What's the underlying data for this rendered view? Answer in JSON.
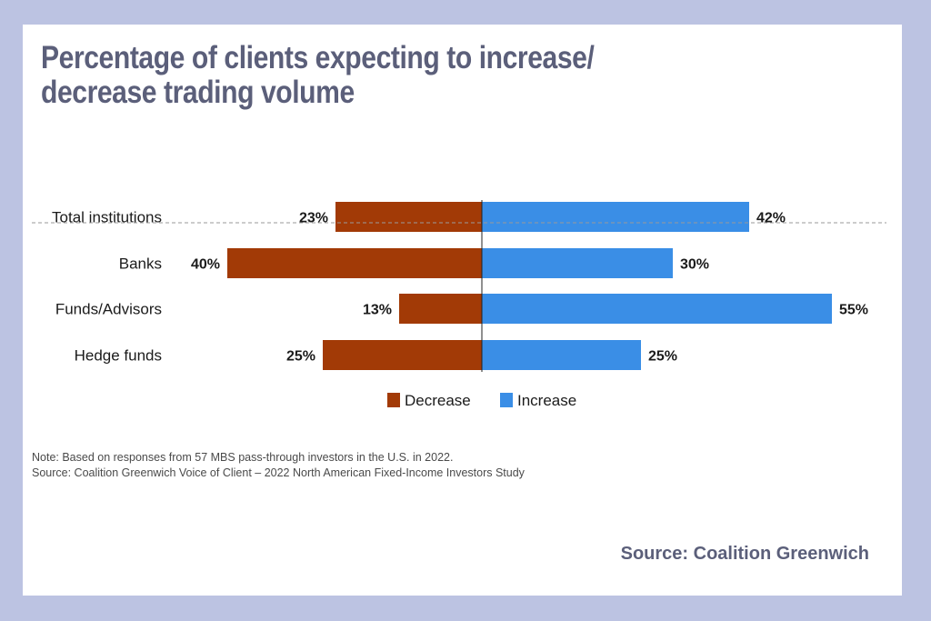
{
  "title_lines": [
    "Percentage of clients expecting to increase/",
    "decrease trading volume"
  ],
  "note": "Note: Based on responses from 57 MBS pass-through investors in the U.S. in 2022.",
  "source_note": "Source: Coalition Greenwich Voice of Client – 2022 North American Fixed-Income Investors Study",
  "source_credit": "Source: Coalition Greenwich",
  "colors": {
    "decrease": "#a23a06",
    "increase": "#3a8ee6",
    "title": "#5b5f7a",
    "background": "#bcc3e2"
  },
  "chart_data": {
    "type": "bar",
    "orientation": "horizontal-diverging",
    "categories": [
      "Total institutions",
      "Banks",
      "Funds/Advisors",
      "Hedge funds"
    ],
    "series": [
      {
        "name": "Decrease",
        "values": [
          23,
          40,
          13,
          25
        ],
        "labels": [
          "23%",
          "40%",
          "13%",
          "25%"
        ],
        "direction": "left"
      },
      {
        "name": "Increase",
        "values": [
          42,
          30,
          55,
          25
        ],
        "labels": [
          "42%",
          "30%",
          "55%",
          "25%"
        ],
        "direction": "right"
      }
    ],
    "unit": "%",
    "legend": [
      "Decrease",
      "Increase"
    ],
    "legend_position": "bottom-center",
    "separator_after_first_category": true,
    "grid": false
  }
}
